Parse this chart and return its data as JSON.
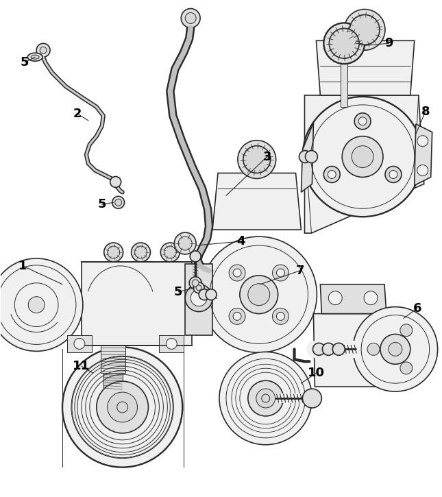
{
  "background_color": "#ffffff",
  "line_color": "#2a2a2a",
  "figsize": [
    6.45,
    7.25
  ],
  "dpi": 100,
  "components": {
    "hose2_color": "#bbbbbb",
    "hose3_color": "#bbbbbb",
    "part_fill": "#f0f0f0",
    "part_fill_dark": "#d8d8d8",
    "shadow_fill": "#e0e0e0"
  }
}
